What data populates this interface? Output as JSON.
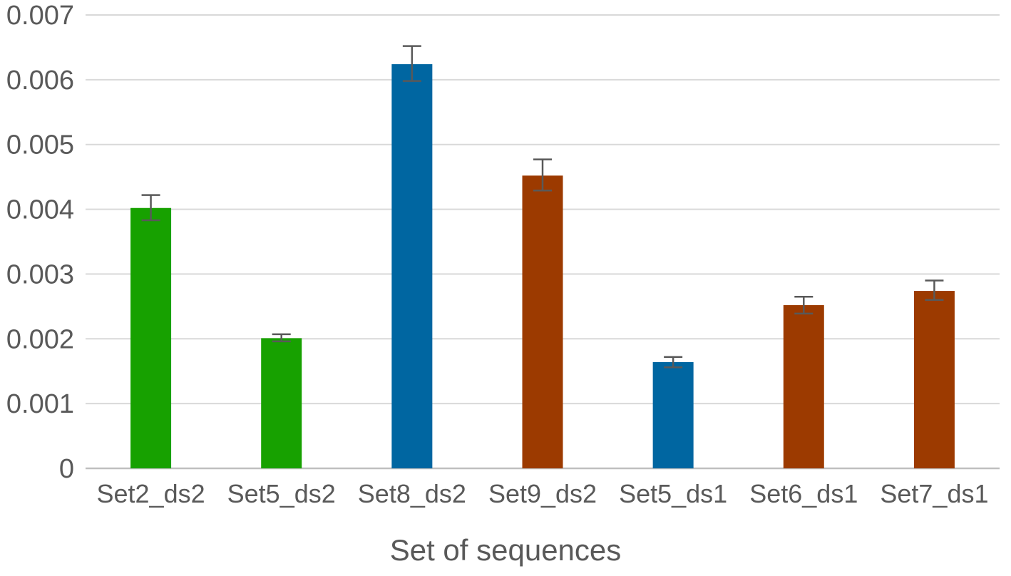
{
  "chart_data": {
    "type": "bar",
    "title": "",
    "xlabel": "Set of sequences",
    "ylabel": "",
    "ylim": [
      0,
      0.007
    ],
    "yticks": [
      "0",
      "0.001",
      "0.002",
      "0.003",
      "0.004",
      "0.005",
      "0.006",
      "0.007"
    ],
    "grid": true,
    "legend": "none",
    "categories": [
      "Set2_ds2",
      "Set5_ds2",
      "Set8_ds2",
      "Set9_ds2",
      "Set5_ds1",
      "Set6_ds1",
      "Set7_ds1"
    ],
    "values": [
      0.00402,
      0.00201,
      0.00624,
      0.00452,
      0.00164,
      0.00252,
      0.00274
    ],
    "error_low": [
      0.00383,
      0.00196,
      0.00598,
      0.00429,
      0.00156,
      0.00239,
      0.0026
    ],
    "error_high": [
      0.00422,
      0.00207,
      0.00652,
      0.00477,
      0.00172,
      0.00265,
      0.0029
    ],
    "bar_colors": [
      "#17a100",
      "#17a100",
      "#0066a1",
      "#9c3a00",
      "#0066a1",
      "#9c3a00",
      "#9c3a00"
    ],
    "error_bar_color": "#595959",
    "grid_color": "#d9d9d9",
    "axis_color": "#bfbfbf"
  }
}
